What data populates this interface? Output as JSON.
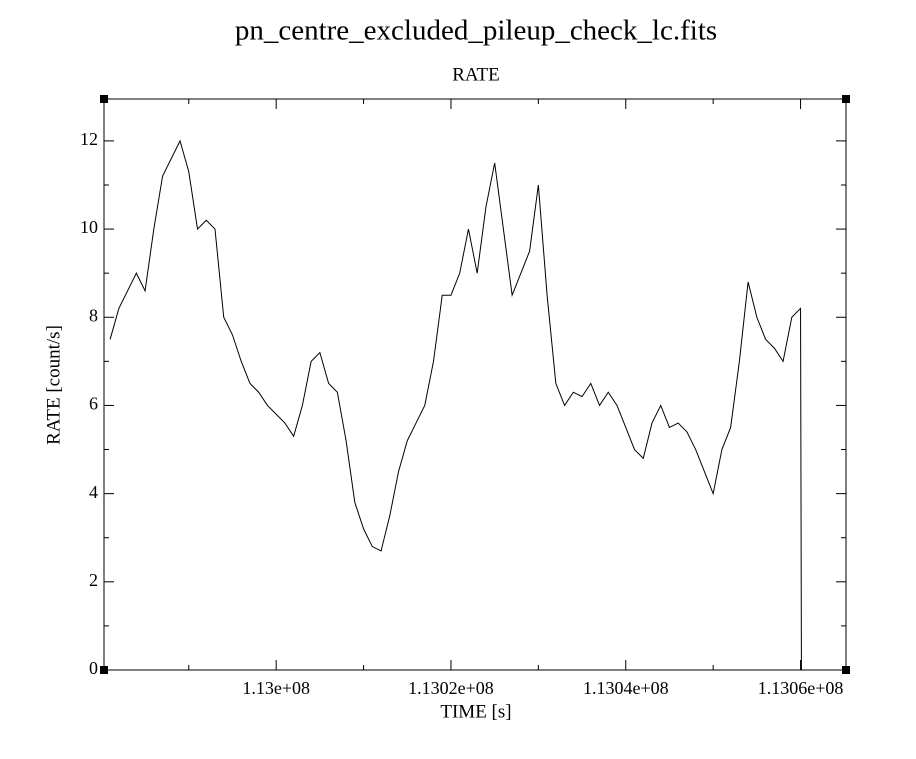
{
  "chart_data": {
    "type": "line",
    "title": "pn_centre_excluded_pileup_check_lc.fits",
    "subtitle": "RATE",
    "x_label": "TIME [s]",
    "y_label": "RATE [count/s]",
    "x": [
      112981000,
      112982000,
      112983000,
      112984000,
      112985000,
      112986000,
      112987000,
      112988000,
      112989000,
      112990000,
      112991000,
      112992000,
      112993000,
      112994000,
      112995000,
      112996000,
      112997000,
      112998000,
      112999000,
      113000000,
      113001000,
      113002000,
      113003000,
      113004000,
      113005000,
      113006000,
      113007000,
      113008000,
      113009000,
      113010000,
      113011000,
      113012000,
      113013000,
      113014000,
      113015000,
      113016000,
      113017000,
      113018000,
      113019000,
      113020000,
      113021000,
      113022000,
      113023000,
      113024000,
      113025000,
      113026000,
      113027000,
      113028000,
      113029000,
      113030000,
      113031000,
      113032000,
      113033000,
      113034000,
      113035000,
      113036000,
      113037000,
      113038000,
      113039000,
      113040000,
      113041000,
      113042000,
      113043000,
      113044000,
      113045000,
      113046000,
      113047000,
      113048000,
      113049000,
      113050000,
      113051000,
      113052000,
      113053000,
      113054000,
      113055000,
      113056000,
      113057000,
      113058000,
      113059000,
      113060000,
      113060100
    ],
    "series": [
      {
        "name": "RATE",
        "color": "#000000",
        "values": [
          7.5,
          8.2,
          8.6,
          9.0,
          8.6,
          10.0,
          11.2,
          11.6,
          12.0,
          11.3,
          10.0,
          10.2,
          10.0,
          8.0,
          7.6,
          7.0,
          6.5,
          6.3,
          6.0,
          5.8,
          5.6,
          5.3,
          6.0,
          7.0,
          7.2,
          6.5,
          6.3,
          5.2,
          3.8,
          3.2,
          2.8,
          2.7,
          3.5,
          4.5,
          5.2,
          5.6,
          6.0,
          7.0,
          8.5,
          8.5,
          9.0,
          10.0,
          9.0,
          10.5,
          11.5,
          10.0,
          8.5,
          9.0,
          9.5,
          11.0,
          8.5,
          6.5,
          6.0,
          6.3,
          6.2,
          6.5,
          6.0,
          6.3,
          6.0,
          5.5,
          5.0,
          4.8,
          5.6,
          6.0,
          5.5,
          5.6,
          5.4,
          5.0,
          4.5,
          4.0,
          5.0,
          5.5,
          7.0,
          8.8,
          8.0,
          7.5,
          7.3,
          7.0,
          8.0,
          8.2,
          0
        ]
      }
    ],
    "xlim": [
      112980300,
      113065200
    ],
    "xticks": [
      {
        "value": 113000000,
        "label": "1.13e+08"
      },
      {
        "value": 113020000,
        "label": "1.1302e+08"
      },
      {
        "value": 113040000,
        "label": "1.1304e+08"
      },
      {
        "value": 113060000,
        "label": "1.1306e+08"
      }
    ],
    "xminorticks": [
      112990000,
      113010000,
      113030000,
      113050000
    ],
    "ylim": [
      0,
      12.95
    ],
    "yticks": [
      0,
      2,
      4,
      6,
      8,
      10,
      12
    ],
    "yminorticks": [
      1,
      3,
      5,
      7,
      9,
      11
    ],
    "grid": false
  }
}
